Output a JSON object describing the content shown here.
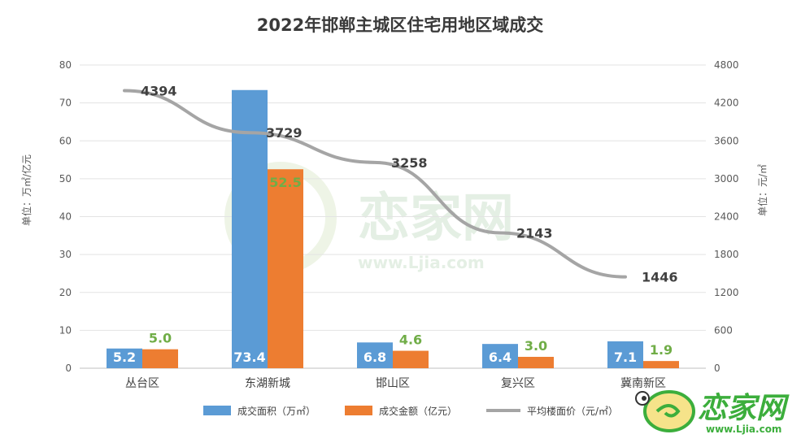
{
  "chart_data": {
    "type": "bar",
    "title": "2022年邯郸主城区住宅用地区域成交",
    "categories": [
      "丛台区",
      "东湖新城",
      "邯山区",
      "复兴区",
      "冀南新区"
    ],
    "series": [
      {
        "name": "成交面积（万㎡）",
        "values": [
          5.2,
          73.4,
          6.8,
          6.4,
          7.1
        ],
        "color": "#5b9bd5",
        "axis": "left",
        "kind": "bar"
      },
      {
        "name": "成交金额（亿元）",
        "values": [
          5.0,
          52.5,
          4.6,
          3.0,
          1.9
        ],
        "color": "#ed7d31",
        "axis": "left",
        "kind": "bar"
      },
      {
        "name": "平均楼面价（元/㎡）",
        "values": [
          4394,
          3729,
          3258,
          2143,
          1446
        ],
        "color": "#a5a5a5",
        "axis": "right",
        "kind": "line"
      }
    ],
    "y_left": {
      "label": "单位：万㎡/亿元",
      "min": 0,
      "max": 80,
      "ticks": [
        "0",
        "10",
        "20",
        "30",
        "40",
        "50",
        "60",
        "70",
        "80"
      ]
    },
    "y_right": {
      "label": "单位：元/㎡",
      "min": 0,
      "max": 4800,
      "ticks": [
        "0",
        "600",
        "1200",
        "1800",
        "2400",
        "3000",
        "3600",
        "4200",
        "4800"
      ]
    },
    "grid": true,
    "legend_position": "bottom",
    "area_labels": [
      "5.2",
      "73.4",
      "6.8",
      "6.4",
      "7.1"
    ],
    "amount_labels": [
      "5.0",
      "52.5",
      "4.6",
      "3.0",
      "1.9"
    ],
    "price_labels": [
      "4394",
      "3729",
      "3258",
      "2143",
      "1446"
    ]
  },
  "watermark": {
    "brand": "恋家网",
    "url": "www.Ljia.com"
  }
}
